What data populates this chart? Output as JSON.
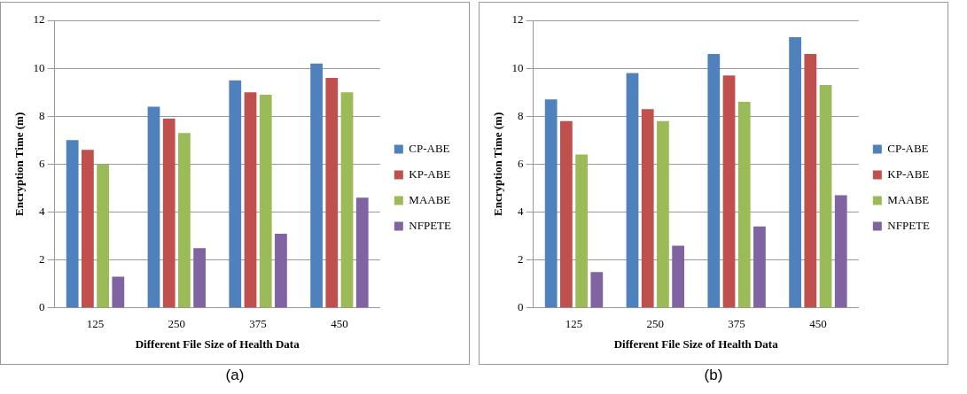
{
  "chart_data": [
    {
      "type": "bar",
      "xlabel": "Different File Size of Health Data",
      "ylabel": "Encryption Time (m)",
      "categories": [
        "125",
        "250",
        "375",
        "450"
      ],
      "series": [
        {
          "name": "CP-ABE",
          "color": "#4f81bd",
          "values": [
            7.0,
            8.4,
            9.5,
            10.2
          ]
        },
        {
          "name": "KP-ABE",
          "color": "#c0504d",
          "values": [
            6.6,
            7.9,
            9.0,
            9.6
          ]
        },
        {
          "name": "MAABE",
          "color": "#9bbb59",
          "values": [
            6.0,
            7.3,
            8.9,
            9.0
          ]
        },
        {
          "name": "NFPETE",
          "color": "#8064a2",
          "values": [
            1.3,
            2.5,
            3.1,
            4.6
          ]
        }
      ],
      "ylim": [
        0,
        12
      ],
      "yticks": [
        0,
        2,
        4,
        6,
        8,
        10,
        12
      ],
      "grid": "y",
      "legend": "right",
      "annotations": [
        "(a)"
      ]
    },
    {
      "type": "bar",
      "xlabel": "Different File Size of Health Data",
      "ylabel": "Encryption Time (m)",
      "categories": [
        "125",
        "250",
        "375",
        "450"
      ],
      "series": [
        {
          "name": "CP-ABE",
          "color": "#4f81bd",
          "values": [
            8.7,
            9.8,
            10.6,
            11.3
          ]
        },
        {
          "name": "KP-ABE",
          "color": "#c0504d",
          "values": [
            7.8,
            8.3,
            9.7,
            10.6
          ]
        },
        {
          "name": "MAABE",
          "color": "#9bbb59",
          "values": [
            6.4,
            7.8,
            8.6,
            9.3
          ]
        },
        {
          "name": "NFPETE",
          "color": "#8064a2",
          "values": [
            1.5,
            2.6,
            3.4,
            4.7
          ]
        }
      ],
      "ylim": [
        0,
        12
      ],
      "yticks": [
        0,
        2,
        4,
        6,
        8,
        10,
        12
      ],
      "grid": "y",
      "legend": "right",
      "annotations": [
        "(b)"
      ]
    }
  ]
}
